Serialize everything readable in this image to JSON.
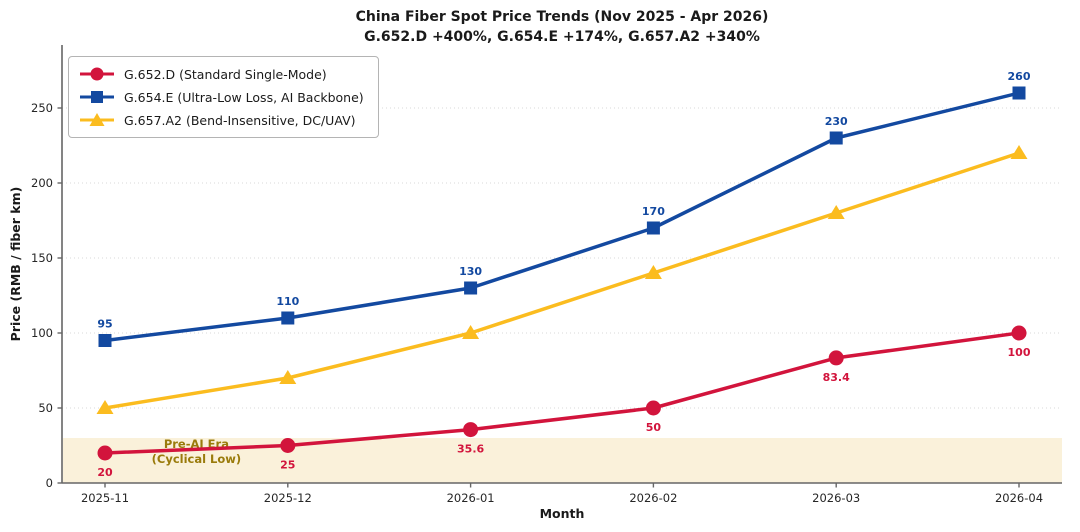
{
  "header": {
    "title": "China Fiber Spot Price Trends (Nov 2025 - Apr 2026)",
    "subtitle": "G.652.D +400%, G.654.E +174%, G.657.A2 +340%"
  },
  "chart_data": {
    "type": "line",
    "x": [
      "2025-11",
      "2025-12",
      "2026-01",
      "2026-02",
      "2026-03",
      "2026-04"
    ],
    "xlabel": "Month",
    "ylabel": "Price (RMB / fiber km)",
    "ylim": [
      0,
      290
    ],
    "yticks": [
      0,
      50,
      100,
      150,
      200,
      250
    ],
    "grid": "horizontal-dotted",
    "grid_color": "#d8d8d8",
    "legend_position": "upper-left",
    "axis_color": "#666666",
    "tick_label_color": "#262626",
    "series": [
      {
        "name": "G.652.D (Standard Single-Mode)",
        "color": "#d2143c",
        "marker": "circle",
        "values": [
          20,
          25,
          35.6,
          50,
          83.4,
          100
        ],
        "point_labels": [
          "20",
          "25",
          "35.6",
          "50",
          "83.4",
          "100"
        ],
        "label_side": "below"
      },
      {
        "name": "G.654.E (Ultra-Low Loss, AI Backbone)",
        "color": "#1349a0",
        "marker": "square",
        "values": [
          95,
          110,
          130,
          170,
          230,
          260
        ],
        "point_labels": [
          "95",
          "110",
          "130",
          "170",
          "230",
          "260"
        ],
        "label_side": "above"
      },
      {
        "name": "G.657.A2 (Bend-Insensitive, DC/UAV)",
        "color": "#fbbc1f",
        "marker": "triangle",
        "values": [
          50,
          70,
          100,
          140,
          180,
          220
        ],
        "point_labels": [],
        "label_side": "none"
      }
    ],
    "annotations": [
      {
        "type": "band",
        "from": 0,
        "to": 30,
        "color": "#faf1da",
        "label": "Pre-AI Era\n(Cyclical Low)",
        "label_color": "#9a7b0b",
        "label_x_index": 0.5
      }
    ]
  }
}
